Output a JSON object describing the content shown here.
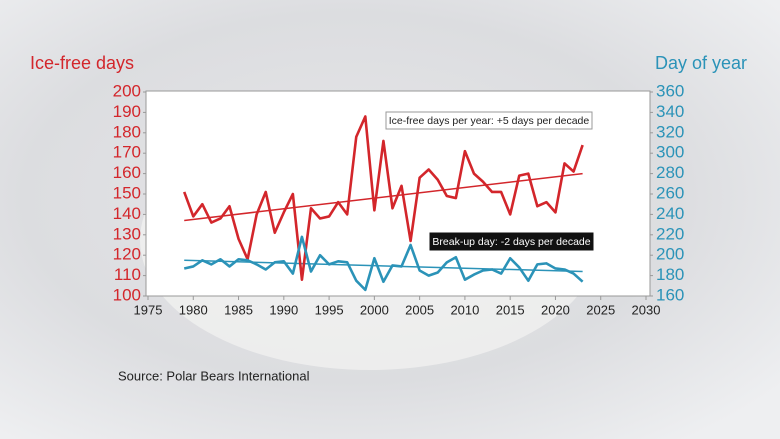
{
  "chart_data": {
    "type": "line",
    "left_axis_title": "Ice-free days",
    "right_axis_title": "Day of year",
    "x": [
      1979,
      1980,
      1981,
      1982,
      1983,
      1984,
      1985,
      1986,
      1987,
      1988,
      1989,
      1990,
      1991,
      1992,
      1993,
      1994,
      1995,
      1996,
      1997,
      1998,
      1999,
      2000,
      2001,
      2002,
      2003,
      2004,
      2005,
      2006,
      2007,
      2008,
      2009,
      2010,
      2011,
      2012,
      2013,
      2014,
      2015,
      2016,
      2017,
      2018,
      2019,
      2020,
      2021,
      2022,
      2023
    ],
    "series": [
      {
        "color": "#d3262b",
        "values": [
          151,
          139,
          145,
          136,
          138,
          144,
          128,
          118,
          140,
          151,
          131,
          141,
          150,
          108,
          143,
          138,
          139,
          146,
          140,
          178,
          188,
          142,
          176,
          143,
          154,
          127,
          158,
          162,
          157,
          149,
          148,
          171,
          160,
          156,
          151,
          151,
          140,
          159,
          160,
          144,
          146,
          141,
          165,
          161,
          174
        ]
      },
      {
        "color": "#2b93b8",
        "axis": "y2",
        "values": [
          187,
          189,
          195,
          191,
          196,
          189,
          196,
          195,
          191,
          186,
          193,
          194,
          182,
          218,
          184,
          200,
          191,
          194,
          193,
          175,
          166,
          197,
          174,
          190,
          189,
          210,
          185,
          180,
          183,
          193,
          198,
          176,
          181,
          185,
          186,
          182,
          197,
          188,
          175,
          191,
          192,
          187,
          186,
          182,
          174
        ]
      }
    ],
    "trends": [
      {
        "color": "#d3262b",
        "x": [
          1979,
          2023
        ],
        "values": [
          137,
          160
        ],
        "label": "Ice-free days per year: +5 days per decade"
      },
      {
        "color": "#2b93b8",
        "axis": "y2",
        "x": [
          1979,
          2023
        ],
        "values": [
          195,
          184
        ],
        "label": "Break-up day: -2 days per decade"
      }
    ],
    "xlim": [
      1975,
      2030
    ],
    "xticks": [
      1975,
      1980,
      1985,
      1990,
      1995,
      2000,
      2005,
      2010,
      2015,
      2020,
      2025,
      2030
    ],
    "ylim": [
      100,
      200
    ],
    "yticks": [
      100,
      110,
      120,
      130,
      140,
      150,
      160,
      170,
      180,
      190,
      200
    ],
    "y2lim": [
      160,
      360
    ],
    "y2ticks": [
      160,
      180,
      200,
      220,
      240,
      260,
      280,
      300,
      320,
      340,
      360
    ],
    "source": "Source: Polar Bears International"
  }
}
